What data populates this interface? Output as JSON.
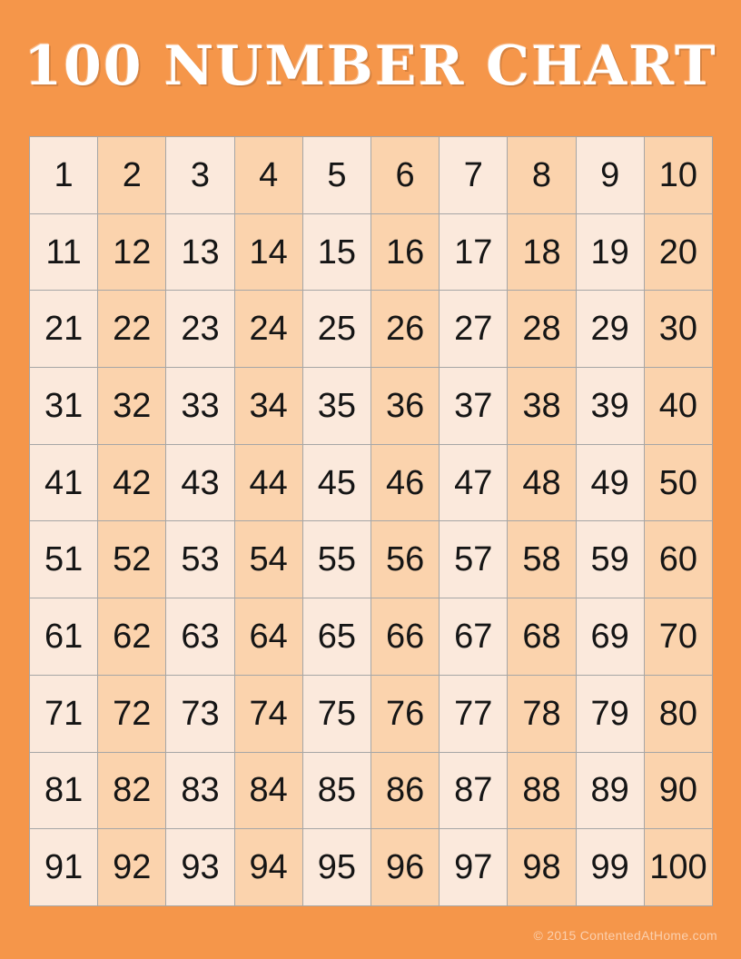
{
  "page": {
    "title": "100 NUMBER CHART",
    "footer": "© 2015 ContentedAtHome.com"
  },
  "grid": {
    "rows": 10,
    "cols": 10,
    "shading": "odd columns light, even columns dark",
    "numbers": [
      1,
      2,
      3,
      4,
      5,
      6,
      7,
      8,
      9,
      10,
      11,
      12,
      13,
      14,
      15,
      16,
      17,
      18,
      19,
      20,
      21,
      22,
      23,
      24,
      25,
      26,
      27,
      28,
      29,
      30,
      31,
      32,
      33,
      34,
      35,
      36,
      37,
      38,
      39,
      40,
      41,
      42,
      43,
      44,
      45,
      46,
      47,
      48,
      49,
      50,
      51,
      52,
      53,
      54,
      55,
      56,
      57,
      58,
      59,
      60,
      61,
      62,
      63,
      64,
      65,
      66,
      67,
      68,
      69,
      70,
      71,
      72,
      73,
      74,
      75,
      76,
      77,
      78,
      79,
      80,
      81,
      82,
      83,
      84,
      85,
      86,
      87,
      88,
      89,
      90,
      91,
      92,
      93,
      94,
      95,
      96,
      97,
      98,
      99,
      100
    ]
  },
  "colors": {
    "background": "#F5964A",
    "cell_light": "#FBE9DC",
    "cell_dark": "#FBD3AD",
    "grid_line": "#A6A6A6",
    "number_text": "#151515",
    "title_text": "#FFFFFF",
    "footer_text": "rgba(255,255,255,0.55)"
  }
}
